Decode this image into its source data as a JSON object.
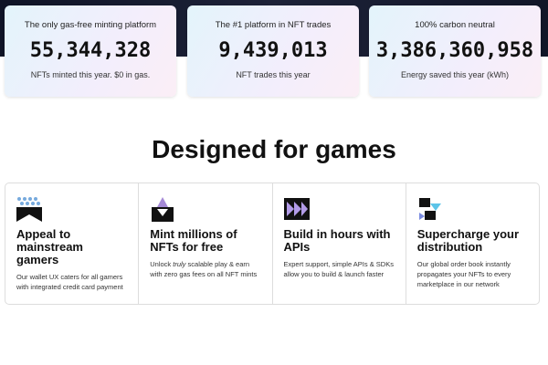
{
  "stats": [
    {
      "label": "The only gas-free minting platform",
      "number": "55,344,328",
      "caption": "NFTs minted this year. $0 in gas."
    },
    {
      "label": "The #1 platform in NFT trades",
      "number": "9,439,013",
      "caption": "NFT trades this year"
    },
    {
      "label": "100% carbon neutral",
      "number": "3,386,360,958",
      "caption": "Energy saved this year (kWh)"
    }
  ],
  "heading": "Designed for games",
  "features": [
    {
      "title": "Appeal to mainstream gamers",
      "description": [
        "Our wallet UX caters for all gamers with integrated credit card payment"
      ]
    },
    {
      "title": "Mint millions of NFTs for free",
      "description": [
        "Unlock ",
        "truly",
        " scalable play & earn with zero gas fees on all NFT mints"
      ]
    },
    {
      "title": "Build in hours with APIs",
      "description": [
        "Expert support, simple APIs & SDKs allow you to build & launch faster"
      ]
    },
    {
      "title": "Supercharge your distribution",
      "description": [
        "Our global order book instantly propagates your NFTs to every marketplace in our network"
      ]
    }
  ]
}
